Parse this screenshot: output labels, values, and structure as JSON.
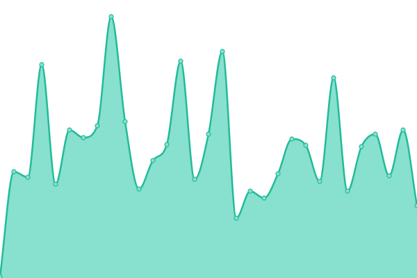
{
  "chart_data": {
    "type": "area",
    "values": [
      2,
      153,
      145,
      307,
      135,
      213,
      202,
      219,
      376,
      225,
      128,
      169,
      192,
      312,
      142,
      207,
      326,
      86,
      125,
      115,
      150,
      200,
      191,
      139,
      288,
      125,
      189,
      207,
      147,
      213,
      104
    ],
    "ylim": [
      0,
      400
    ],
    "color": "#22bb98",
    "fill_color": "#88e0cf",
    "smooth": true
  }
}
